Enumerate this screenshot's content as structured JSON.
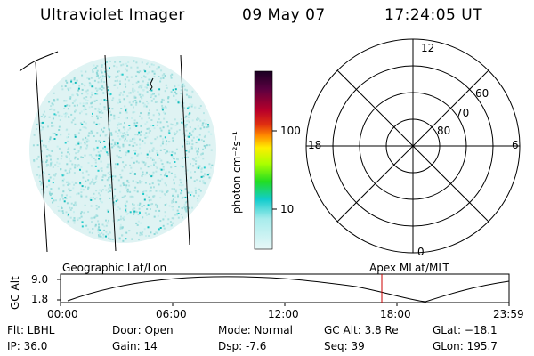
{
  "header": {
    "title": "Ultraviolet Imager",
    "date": "09 May 07",
    "time": "17:24:05 UT"
  },
  "colorbar": {
    "unit_label": "photon cm⁻²s⁻¹",
    "ticks": [
      "100",
      "10"
    ]
  },
  "polar": {
    "mlt_labels": [
      "12",
      "18",
      "6",
      "0"
    ],
    "lat_labels": [
      "60",
      "70",
      "80"
    ]
  },
  "panels": {
    "left_label": "Geographic Lat/Lon",
    "right_label": "Apex MLat/MLT"
  },
  "altitude_plot": {
    "ylabel": "GC Alt",
    "y_ticks": [
      "9.0",
      "1.8"
    ],
    "x_ticks": [
      "00:00",
      "06:00",
      "12:00",
      "18:00",
      "23:59"
    ],
    "colors": {
      "marker": "#cc0000"
    }
  },
  "info": {
    "flt": "Flt: LBHL",
    "ip": "IP: 36.0",
    "door": "Door: Open",
    "gain": "Gain: 14",
    "mode": "Mode: Normal",
    "dsp": "Dsp:    -7.6",
    "gcalt": "GC Alt: 3.8 Re",
    "seq": "Seq: 39",
    "glat": "GLat: −18.1",
    "glon": "GLon: 195.7"
  }
}
